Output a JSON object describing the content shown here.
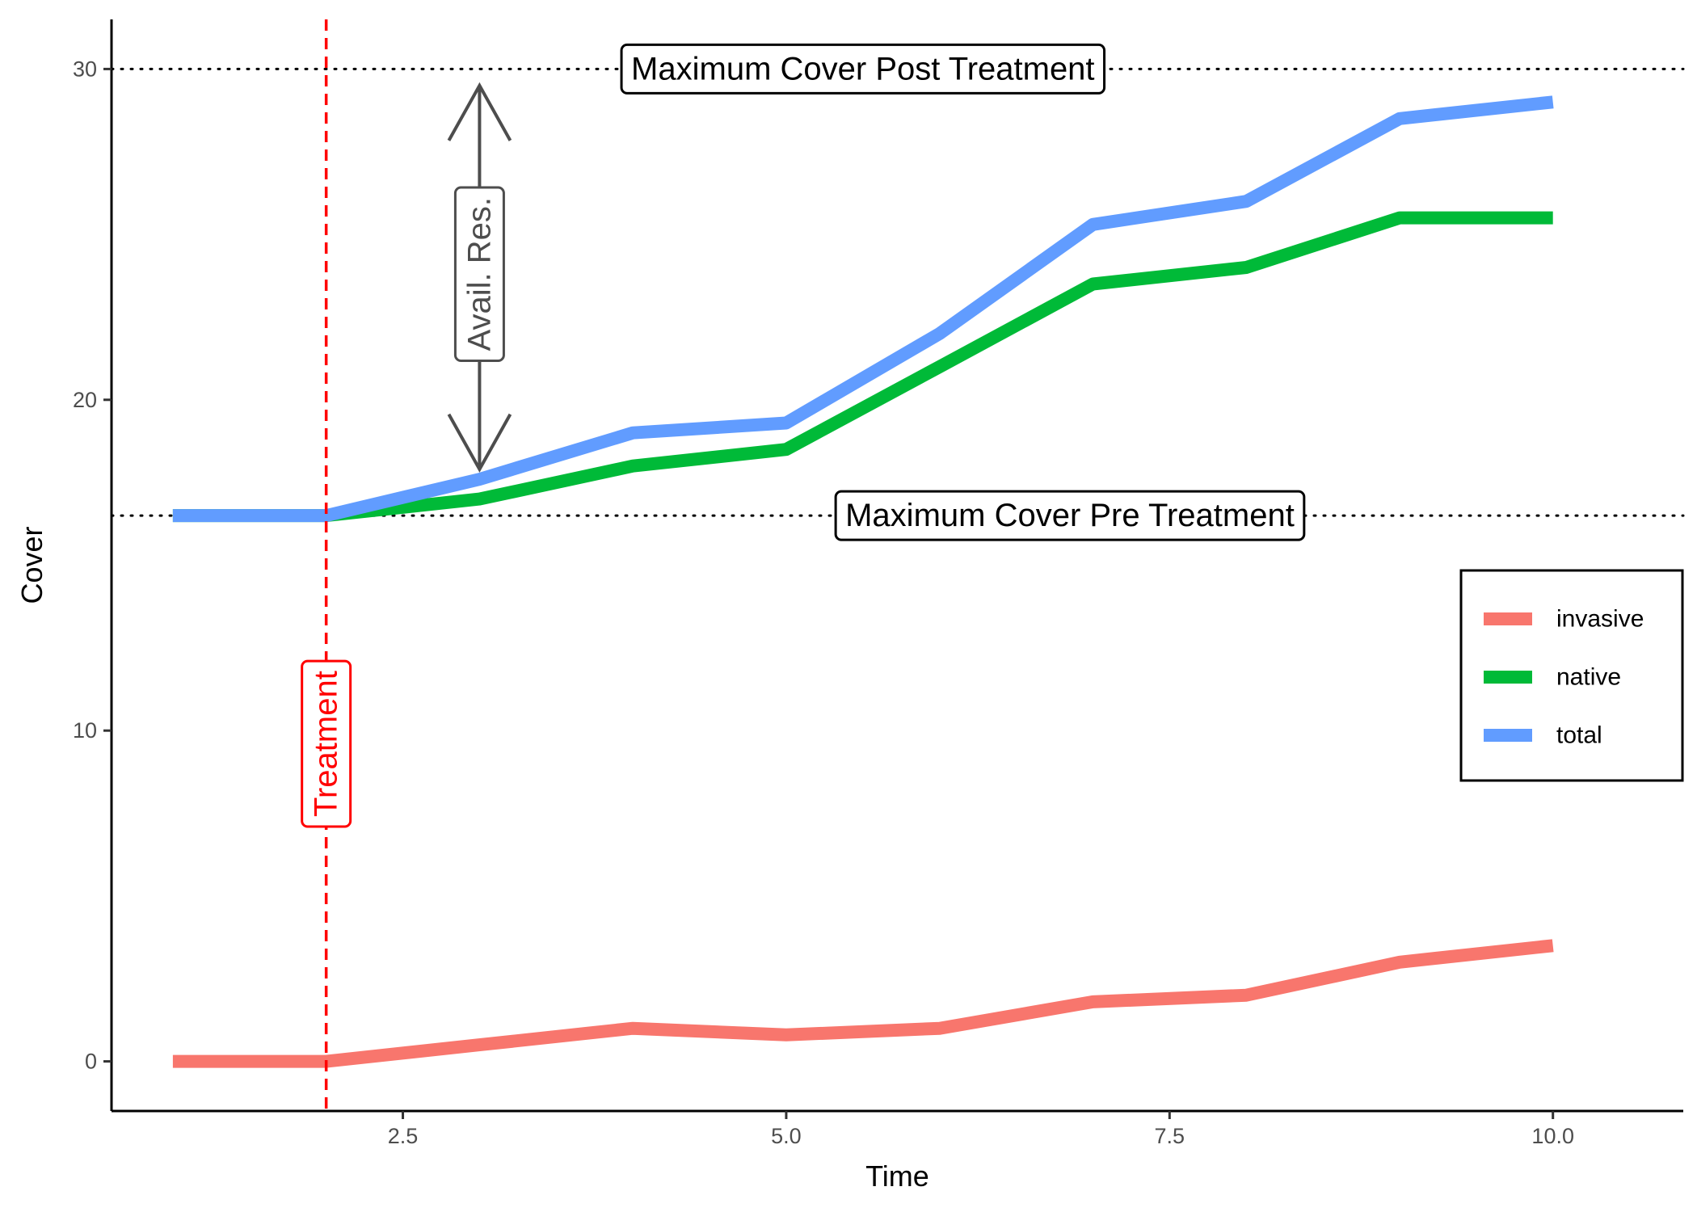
{
  "chart_data": {
    "type": "line",
    "xlabel": "Time",
    "ylabel": "Cover",
    "xlim": [
      0.6,
      10.85
    ],
    "ylim": [
      -1.5,
      31.5
    ],
    "xticks": [
      2.5,
      5.0,
      7.5,
      10.0
    ],
    "xtick_labels": [
      "2.5",
      "5.0",
      "7.5",
      "10.0"
    ],
    "yticks": [
      0,
      10,
      20,
      30
    ],
    "ytick_labels": [
      "0",
      "10",
      "20",
      "30"
    ],
    "grid": false,
    "x": [
      1,
      2,
      3,
      4,
      5,
      6,
      7,
      8,
      9,
      10
    ],
    "series": [
      {
        "name": "invasive",
        "color": "#F8766D",
        "values": [
          0,
          0,
          0.5,
          1.0,
          0.8,
          1.0,
          1.8,
          2.0,
          3.0,
          3.5
        ]
      },
      {
        "name": "native",
        "color": "#00BA38",
        "values": [
          16.5,
          16.5,
          17.0,
          18.0,
          18.5,
          21.0,
          23.5,
          24.0,
          25.5,
          25.5
        ]
      },
      {
        "name": "total",
        "color": "#619CFF",
        "values": [
          16.5,
          16.5,
          17.6,
          19.0,
          19.3,
          22.0,
          25.3,
          26.0,
          28.5,
          29.0
        ]
      }
    ],
    "legend": {
      "position": "right",
      "entries": [
        "invasive",
        "native",
        "total"
      ]
    },
    "annotations": {
      "max_post": {
        "y": 30,
        "label": "Maximum Cover Post Treatment",
        "label_x": 5.5
      },
      "max_pre": {
        "y": 16.5,
        "label": "Maximum Cover Pre Treatment",
        "label_x": 6.85
      },
      "treatment": {
        "x": 2,
        "label": "Treatment",
        "label_y": 9.6,
        "color": "#FF0000"
      },
      "avail_res": {
        "x": 3,
        "y_from": 17.9,
        "y_to": 29.5,
        "label": "Avail. Res.",
        "label_y": 23.8,
        "color": "#4D4D4D"
      }
    }
  }
}
